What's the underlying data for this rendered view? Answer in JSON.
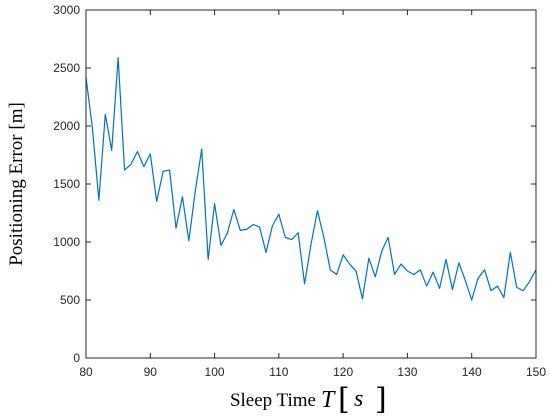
{
  "chart_data": {
    "type": "line",
    "title": "",
    "xlabel": "Sleep Time",
    "xlabel_symbol": "T",
    "xlabel_unit": "s",
    "ylabel": "Positioning Error [m]",
    "xlim": [
      80,
      150
    ],
    "ylim": [
      0,
      3000
    ],
    "xticks": [
      80,
      90,
      100,
      110,
      120,
      130,
      140,
      150
    ],
    "yticks": [
      0,
      500,
      1000,
      1500,
      2000,
      2500,
      3000
    ],
    "grid": false,
    "line_color": "#0072BD",
    "series": [
      {
        "x": [
          80,
          81,
          82,
          83,
          84,
          85,
          86,
          87,
          88,
          89,
          90,
          91,
          92,
          93,
          94,
          95,
          96,
          97,
          98,
          99,
          100,
          101,
          102,
          103,
          104,
          105,
          106,
          107,
          108,
          109,
          110,
          111,
          112,
          113,
          114,
          115,
          116,
          117,
          118,
          119,
          120,
          121,
          122,
          123,
          124,
          125,
          126,
          127,
          128,
          129,
          130,
          131,
          132,
          133,
          134,
          135,
          136,
          137,
          138,
          139,
          140,
          141,
          142,
          143,
          144,
          145,
          146,
          147,
          148,
          149,
          150
        ],
        "values": [
          2420,
          1980,
          1360,
          2100,
          1790,
          2590,
          1620,
          1670,
          1780,
          1650,
          1760,
          1350,
          1610,
          1620,
          1120,
          1390,
          1010,
          1440,
          1800,
          850,
          1330,
          970,
          1080,
          1280,
          1100,
          1110,
          1150,
          1130,
          910,
          1140,
          1240,
          1040,
          1020,
          1080,
          640,
          980,
          1270,
          1040,
          760,
          720,
          890,
          810,
          750,
          510,
          860,
          700,
          920,
          1040,
          720,
          810,
          750,
          720,
          760,
          620,
          740,
          600,
          850,
          590,
          820,
          670,
          500,
          690,
          760,
          580,
          620,
          520,
          910,
          610,
          580,
          660,
          760
        ]
      }
    ]
  }
}
